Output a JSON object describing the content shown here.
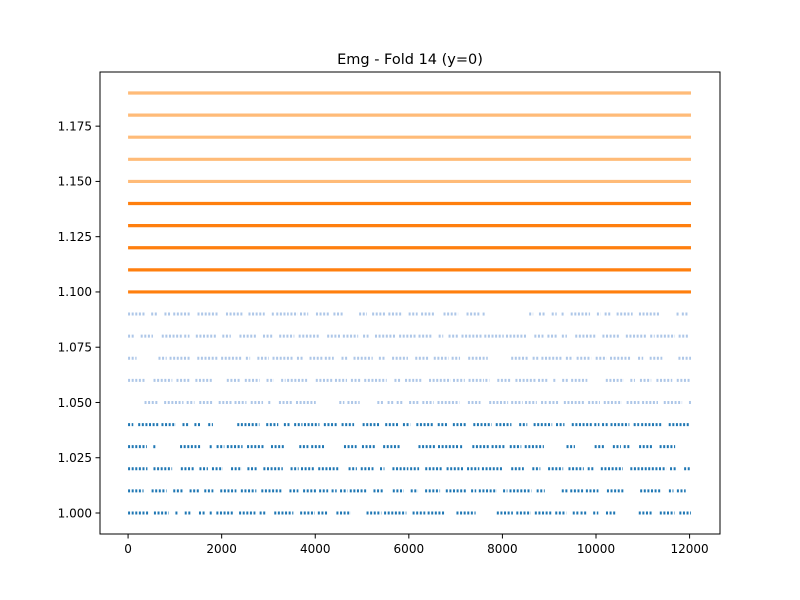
{
  "chart_data": {
    "type": "scatter",
    "title": "Emg - Fold 14 (y=0)",
    "xlabel": "",
    "ylabel": "",
    "xlim": [
      -600,
      12650
    ],
    "ylim": [
      0.9905,
      1.1995
    ],
    "xticks": [
      0,
      2000,
      4000,
      6000,
      8000,
      10000,
      12000
    ],
    "xtick_labels": [
      "0",
      "2000",
      "4000",
      "6000",
      "8000",
      "10000",
      "12000"
    ],
    "yticks": [
      1.0,
      1.025,
      1.05,
      1.075,
      1.1,
      1.125,
      1.15,
      1.175
    ],
    "ytick_labels": [
      "1.000",
      "1.025",
      "1.050",
      "1.075",
      "1.100",
      "1.125",
      "1.150",
      "1.175"
    ],
    "grid": false,
    "legend": "none",
    "x_range_of_points": [
      0,
      12030
    ],
    "series": [
      {
        "color": "#1f77b4",
        "density": "sparse",
        "y_levels": [
          1.0,
          1.01,
          1.02,
          1.03,
          1.04
        ]
      },
      {
        "color": "#aec7e8",
        "density": "sparse",
        "y_levels": [
          1.05,
          1.06,
          1.07,
          1.08,
          1.09
        ]
      },
      {
        "color": "#ff7f0e",
        "density": "dense",
        "y_levels": [
          1.1,
          1.11,
          1.12,
          1.13,
          1.14
        ]
      },
      {
        "color": "#ffbb78",
        "density": "dense",
        "y_levels": [
          1.15,
          1.16,
          1.17,
          1.18,
          1.19
        ]
      }
    ]
  }
}
